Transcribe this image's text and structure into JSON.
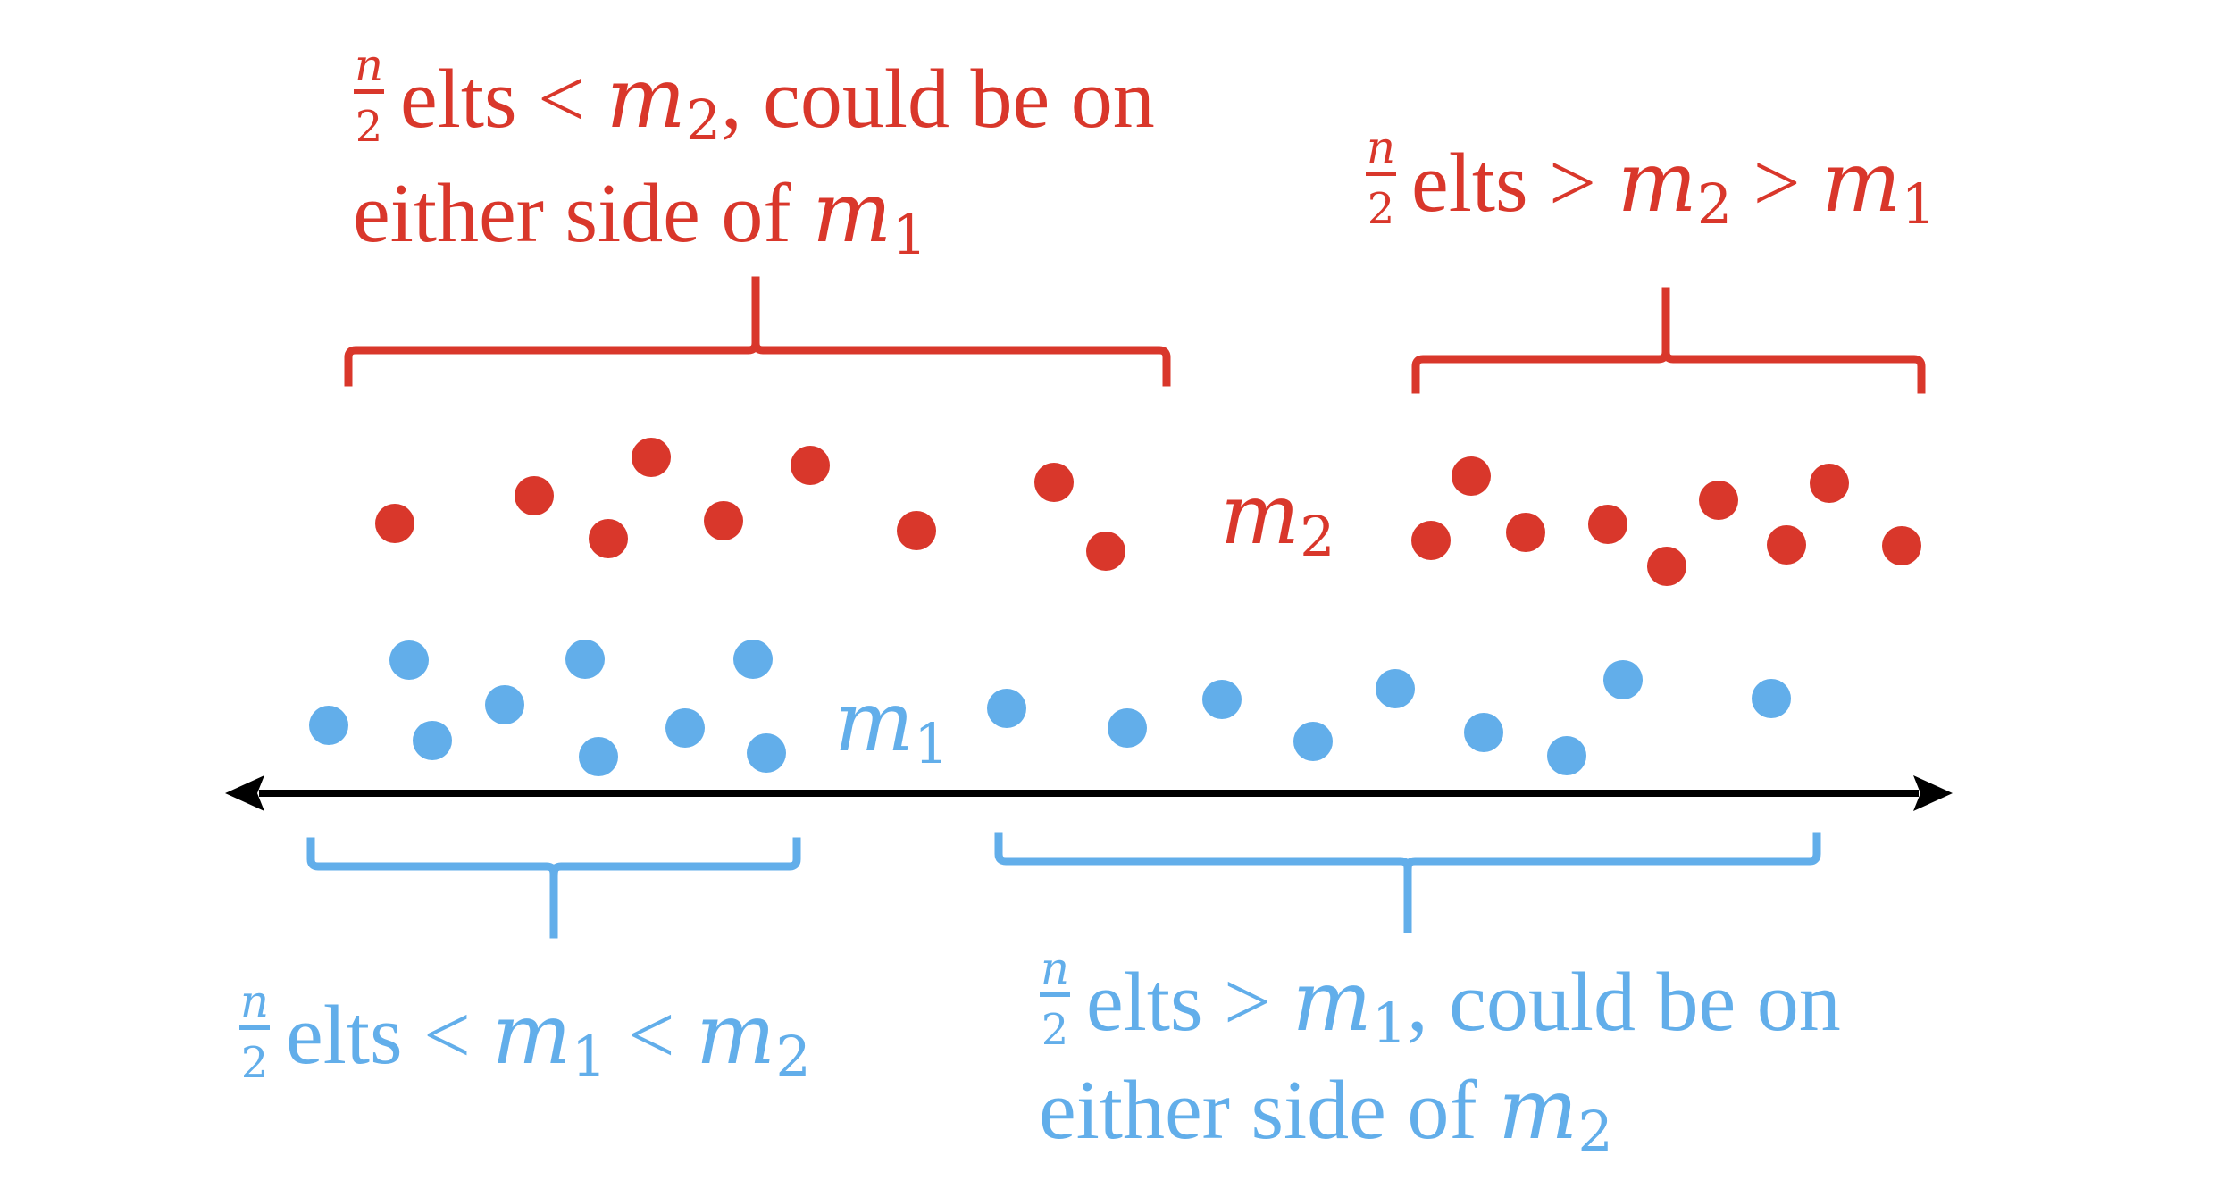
{
  "colors": {
    "red": "#D9372B",
    "blue": "#62AEEA",
    "axis": "#000000",
    "background": "#FFFFFF"
  },
  "red_top_label": {
    "frac_num": "n",
    "frac_den": "2",
    "line1_text": " elts < ",
    "line1_var": "m",
    "line1_sub": "2",
    "line1_tail": ", could be on",
    "line2_text": "either side of ",
    "line2_var": "m",
    "line2_sub": "1"
  },
  "red_right_label": {
    "frac_num": "n",
    "frac_den": "2",
    "text1": " elts > ",
    "var1": "m",
    "sub1": "2",
    "text2": " > ",
    "var2": "m",
    "sub2": "1"
  },
  "m2_marker": {
    "var": "m",
    "sub": "2"
  },
  "m1_marker": {
    "var": "m",
    "sub": "1"
  },
  "blue_left_label": {
    "frac_num": "n",
    "frac_den": "2",
    "text1": " elts < ",
    "var1": "m",
    "sub1": "1",
    "text2": " < ",
    "var2": "m",
    "sub2": "2"
  },
  "blue_right_label": {
    "frac_num": "n",
    "frac_den": "2",
    "line1_text": " elts > ",
    "line1_var": "m",
    "line1_sub": "1",
    "line1_tail": ", could be on",
    "line2_text": "either side of ",
    "line2_var": "m",
    "line2_sub": "2"
  }
}
